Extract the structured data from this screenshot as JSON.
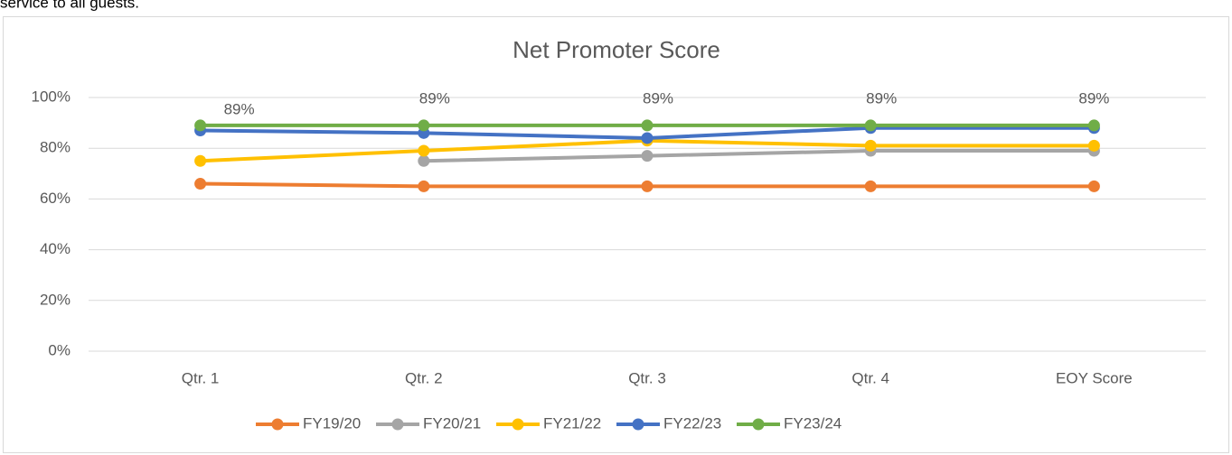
{
  "header_text": "service to all guests.",
  "chart_data": {
    "type": "line",
    "title": "Net Promoter Score",
    "categories": [
      "Qtr. 1",
      "Qtr. 2",
      "Qtr. 3",
      "Qtr. 4",
      "EOY Score"
    ],
    "series": [
      {
        "name": "FY19/20",
        "color": "#ED7D31",
        "values": [
          66,
          65,
          65,
          65,
          65
        ]
      },
      {
        "name": "FY20/21",
        "color": "#A5A5A5",
        "values": [
          null,
          75,
          77,
          79,
          79
        ]
      },
      {
        "name": "FY21/22",
        "color": "#FFC000",
        "values": [
          75,
          79,
          83,
          81,
          81
        ]
      },
      {
        "name": "FY22/23",
        "color": "#4472C4",
        "values": [
          87,
          86,
          84,
          88,
          88
        ]
      },
      {
        "name": "FY23/24",
        "color": "#70AD47",
        "values": [
          89,
          89,
          89,
          89,
          89
        ],
        "value_labels": [
          "89%",
          "89%",
          "89%",
          "89%",
          "89%"
        ]
      }
    ],
    "ylim": [
      0,
      100
    ],
    "yticks": [
      {
        "value": 0,
        "label": "0%"
      },
      {
        "value": 20,
        "label": "20%"
      },
      {
        "value": 40,
        "label": "40%"
      },
      {
        "value": 60,
        "label": "60%"
      },
      {
        "value": 80,
        "label": "80%"
      },
      {
        "value": 100,
        "label": "100%"
      }
    ],
    "grid": true,
    "legend": "bottom"
  }
}
